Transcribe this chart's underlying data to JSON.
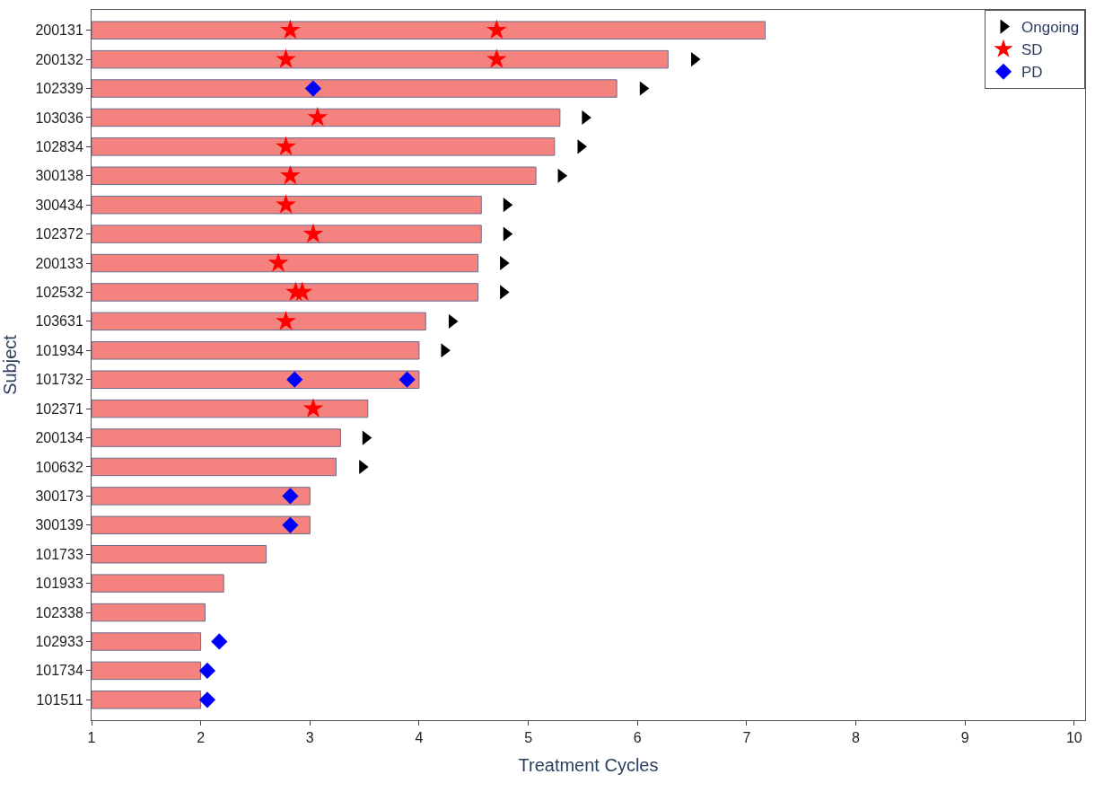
{
  "chart_data": {
    "type": "bar",
    "orientation": "horizontal",
    "xlabel": "Treatment Cycles",
    "ylabel": "Subject",
    "xlim": [
      1,
      10.1
    ],
    "xticks": [
      1,
      2,
      3,
      4,
      5,
      6,
      7,
      8,
      9,
      10
    ],
    "legend": "top right",
    "categories": [
      "200131",
      "200132",
      "102339",
      "103036",
      "102834",
      "300138",
      "300434",
      "102372",
      "200133",
      "102532",
      "103631",
      "101934",
      "101732",
      "102371",
      "200134",
      "100632",
      "300173",
      "300139",
      "101733",
      "101933",
      "102338",
      "102933",
      "101734",
      "101511"
    ],
    "series": [
      {
        "color": "#f4837f",
        "base": [
          1,
          1,
          1,
          1,
          1,
          1,
          1,
          1,
          1,
          1,
          1,
          1,
          1,
          1,
          1,
          1,
          1,
          1,
          1,
          1,
          1,
          1,
          1,
          1
        ],
        "values": [
          6.17,
          5.28,
          4.81,
          4.29,
          4.24,
          4.07,
          3.57,
          3.57,
          3.54,
          3.54,
          3.06,
          3.0,
          3.0,
          2.53,
          2.28,
          2.24,
          2.0,
          2.0,
          1.6,
          1.21,
          1.04,
          1.0,
          1.0,
          1.0
        ]
      },
      {
        "type": "scatter",
        "name": "Ongoing",
        "color": "#000000",
        "marker": "triangle",
        "x": [
          "200132",
          "102339",
          "103036",
          "102834",
          "300138",
          "300434",
          "102372",
          "200133",
          "102532",
          "103631",
          "101934",
          "200134",
          "100632"
        ],
        "values": [
          6.52,
          6.05,
          5.52,
          5.48,
          5.3,
          4.8,
          4.8,
          4.77,
          4.77,
          4.3,
          4.23,
          3.51,
          3.48
        ]
      },
      {
        "type": "scatter",
        "name": "SD",
        "color": "#ff0000",
        "marker": "star",
        "x": [
          "200131",
          "200131",
          "200132",
          "200132",
          "103036",
          "102834",
          "300138",
          "300434",
          "102372",
          "200133",
          "102532",
          "102532",
          "103631",
          "102371"
        ],
        "values": [
          2.82,
          4.71,
          2.78,
          4.71,
          3.07,
          2.78,
          2.82,
          2.78,
          3.03,
          2.71,
          2.87,
          2.93,
          2.78,
          3.03
        ]
      },
      {
        "type": "scatter",
        "name": "PD",
        "color": "#0000ff",
        "marker": "diamond",
        "x": [
          "102339",
          "101732",
          "101732",
          "300173",
          "300139",
          "102933",
          "101734",
          "101511"
        ],
        "values": [
          3.03,
          2.86,
          3.89,
          2.82,
          2.82,
          2.17,
          2.06,
          2.06
        ]
      }
    ]
  }
}
